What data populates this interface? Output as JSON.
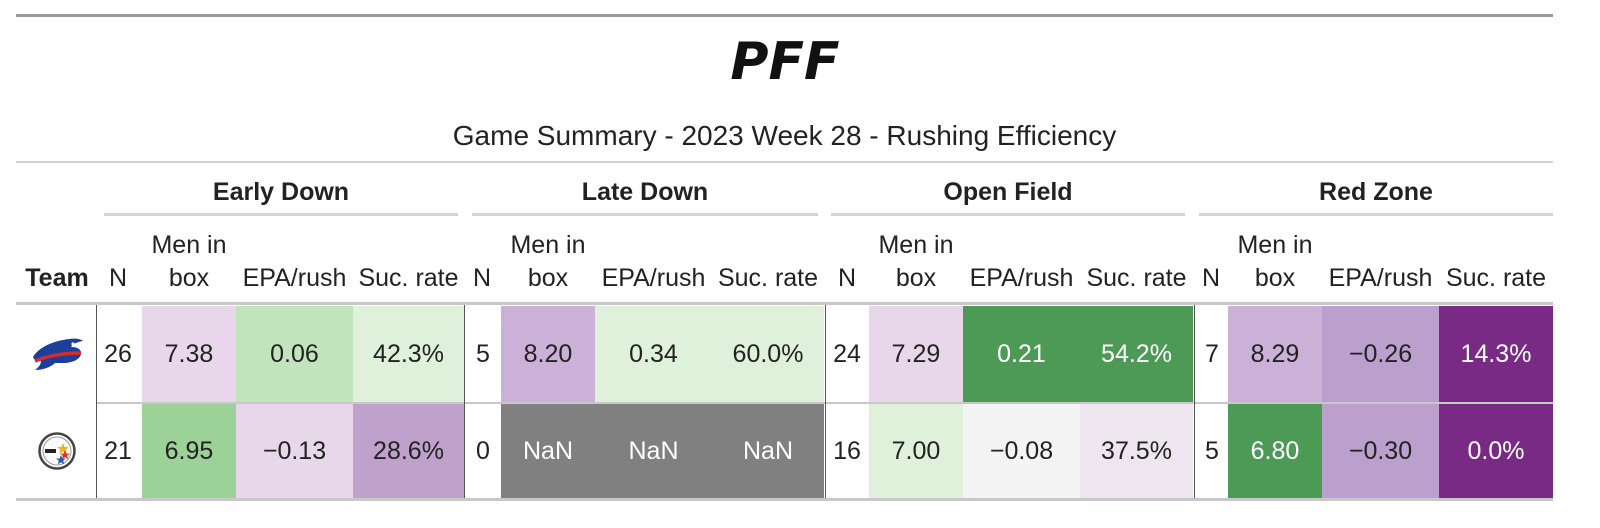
{
  "header": {
    "brand_logo": "PFF",
    "title": "Game Summary - 2023 Week 28 - Rushing Efficiency"
  },
  "table": {
    "team_label": "Team",
    "groups": [
      "Early Down",
      "Late Down",
      "Open Field",
      "Red Zone"
    ],
    "columns": {
      "n": "N",
      "men_in_box_1": "Men in",
      "men_in_box_2": "box",
      "epa": "EPA/rush",
      "suc": "Suc. rate"
    },
    "rows": [
      {
        "team_icon": "bills-logo",
        "cells": [
          "26",
          "7.38",
          "0.06",
          "42.3%",
          "5",
          "8.20",
          "0.34",
          "60.0%",
          "24",
          "7.29",
          "0.21",
          "54.2%",
          "7",
          "8.29",
          "−0.26",
          "14.3%"
        ]
      },
      {
        "team_icon": "steelers-logo",
        "cells": [
          "21",
          "6.95",
          "−0.13",
          "28.6%",
          "0",
          "NaN",
          "NaN",
          "NaN",
          "16",
          "7.00",
          "−0.08",
          "37.5%",
          "5",
          "6.80",
          "−0.30",
          "0.0%"
        ]
      }
    ]
  },
  "colors": {
    "rule": "#d3d3d3",
    "green_dark": "#4d9a57",
    "green_mid": "#9cd197",
    "green_light": "#c2e4bc",
    "green_pale": "#dff1da",
    "purple_dark": "#782a84",
    "purple_mid": "#bba0cd",
    "purple_light": "#cbb0d7",
    "purple_pale": "#e8d7ea",
    "nan_gray": "#808080"
  }
}
